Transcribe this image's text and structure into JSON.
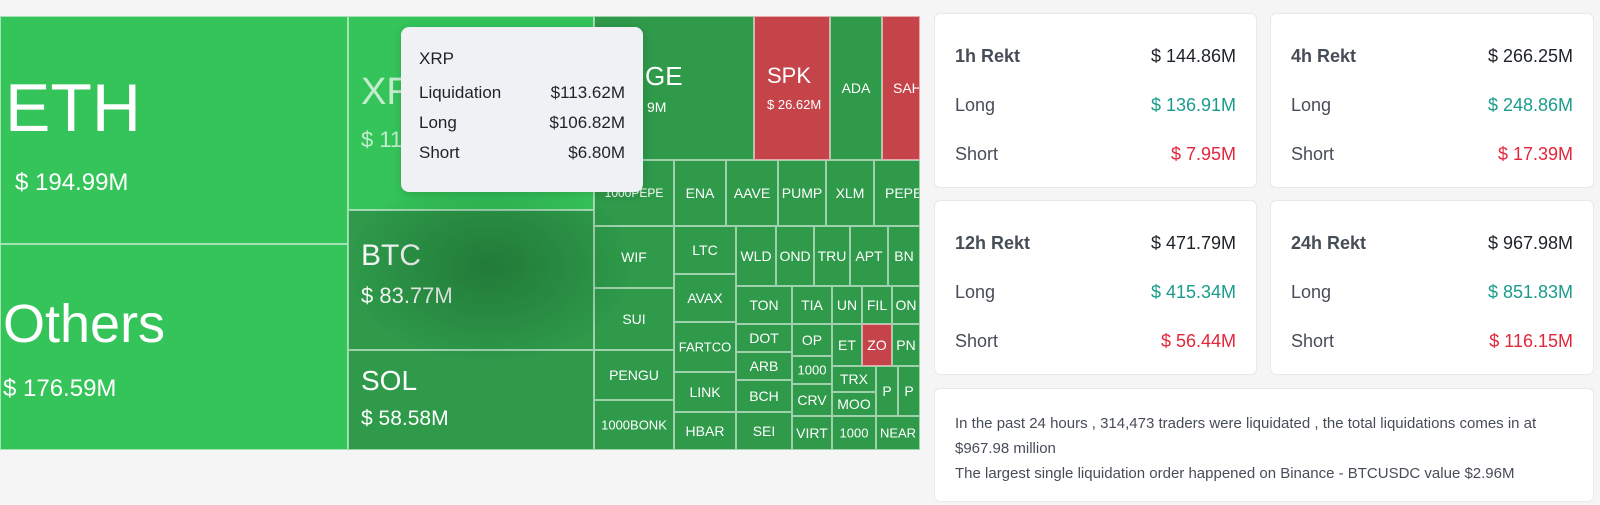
{
  "treemap": {
    "tiles": [
      {
        "symbol": "ETH",
        "value": "$ 194.99M",
        "trend": "long"
      },
      {
        "symbol": "Others",
        "value": "$ 176.59M",
        "trend": "long"
      },
      {
        "symbol": "XR",
        "value": "$ 11",
        "trend": "long"
      },
      {
        "symbol": "BTC",
        "value": "$ 83.77M",
        "trend": "long"
      },
      {
        "symbol": "SOL",
        "value": "$ 58.58M",
        "trend": "long"
      },
      {
        "symbol": "GE",
        "value": "9M",
        "trend": "long"
      },
      {
        "symbol": "SPK",
        "value": "$ 26.62M",
        "trend": "short"
      },
      {
        "symbol": "ADA",
        "trend": "long"
      },
      {
        "symbol": "SAH",
        "trend": "short"
      },
      {
        "symbol": "1000PEPE",
        "trend": "long"
      },
      {
        "symbol": "ENA",
        "trend": "long"
      },
      {
        "symbol": "AAVE",
        "trend": "long"
      },
      {
        "symbol": "PUMP",
        "trend": "long"
      },
      {
        "symbol": "XLM",
        "trend": "long"
      },
      {
        "symbol": "PEPE",
        "trend": "long"
      },
      {
        "symbol": "WIF",
        "trend": "long"
      },
      {
        "symbol": "LTC",
        "trend": "long"
      },
      {
        "symbol": "WLD",
        "trend": "long"
      },
      {
        "symbol": "OND",
        "trend": "long"
      },
      {
        "symbol": "TRU",
        "trend": "long"
      },
      {
        "symbol": "APT",
        "trend": "long"
      },
      {
        "symbol": "BN",
        "trend": "long"
      },
      {
        "symbol": "SUI",
        "trend": "long"
      },
      {
        "symbol": "AVAX",
        "trend": "long"
      },
      {
        "symbol": "TON",
        "trend": "long"
      },
      {
        "symbol": "TIA",
        "trend": "long"
      },
      {
        "symbol": "UN",
        "trend": "long"
      },
      {
        "symbol": "FIL",
        "trend": "long"
      },
      {
        "symbol": "ON",
        "trend": "long"
      },
      {
        "symbol": "PENGU",
        "trend": "long"
      },
      {
        "symbol": "FARTCO",
        "trend": "long"
      },
      {
        "symbol": "DOT",
        "trend": "long"
      },
      {
        "symbol": "OP",
        "trend": "long"
      },
      {
        "symbol": "ET",
        "trend": "long"
      },
      {
        "symbol": "ZO",
        "trend": "short"
      },
      {
        "symbol": "PN",
        "trend": "long"
      },
      {
        "symbol": "LINK",
        "trend": "long"
      },
      {
        "symbol": "ARB",
        "trend": "long"
      },
      {
        "symbol": "1000",
        "trend": "long"
      },
      {
        "symbol": "TRX",
        "trend": "long"
      },
      {
        "symbol": "P",
        "trend": "long"
      },
      {
        "symbol": "P",
        "trend": "long"
      },
      {
        "symbol": "BCH",
        "trend": "long"
      },
      {
        "symbol": "CRV",
        "trend": "long"
      },
      {
        "symbol": "MOO",
        "trend": "long"
      },
      {
        "symbol": "1000BONK",
        "trend": "long"
      },
      {
        "symbol": "HBAR",
        "trend": "long"
      },
      {
        "symbol": "SEI",
        "trend": "long"
      },
      {
        "symbol": "VIRT",
        "trend": "long"
      },
      {
        "symbol": "1000",
        "trend": "long"
      },
      {
        "symbol": "NEAR",
        "trend": "long"
      }
    ]
  },
  "tooltip": {
    "title": "XRP",
    "rows": [
      {
        "label": "Liquidation",
        "value": "$113.62M"
      },
      {
        "label": "Long",
        "value": "$106.82M"
      },
      {
        "label": "Short",
        "value": "$6.80M"
      }
    ]
  },
  "cards": [
    {
      "title": "1h Rekt",
      "total": "$ 144.86M",
      "long_label": "Long",
      "long": "$ 136.91M",
      "short_label": "Short",
      "short": "$ 7.95M"
    },
    {
      "title": "4h Rekt",
      "total": "$ 266.25M",
      "long_label": "Long",
      "long": "$ 248.86M",
      "short_label": "Short",
      "short": "$ 17.39M"
    },
    {
      "title": "12h Rekt",
      "total": "$ 471.79M",
      "long_label": "Long",
      "long": "$ 415.34M",
      "short_label": "Short",
      "short": "$ 56.44M"
    },
    {
      "title": "24h Rekt",
      "total": "$ 967.98M",
      "long_label": "Long",
      "long": "$ 851.83M",
      "short_label": "Short",
      "short": "$ 116.15M"
    }
  ],
  "summary": {
    "line1": "In the past 24 hours , 314,473 traders were liquidated , the total liquidations comes in at $967.98 million",
    "line2": "The largest single liquidation order happened on Binance - BTCUSDC value $2.96M"
  },
  "colors": {
    "long_tile": "#2e9a4a",
    "long_tile_bright": "#35c45a",
    "short_tile": "#c5444a",
    "long_text": "#1a9c8c",
    "short_text": "#e4263c"
  }
}
